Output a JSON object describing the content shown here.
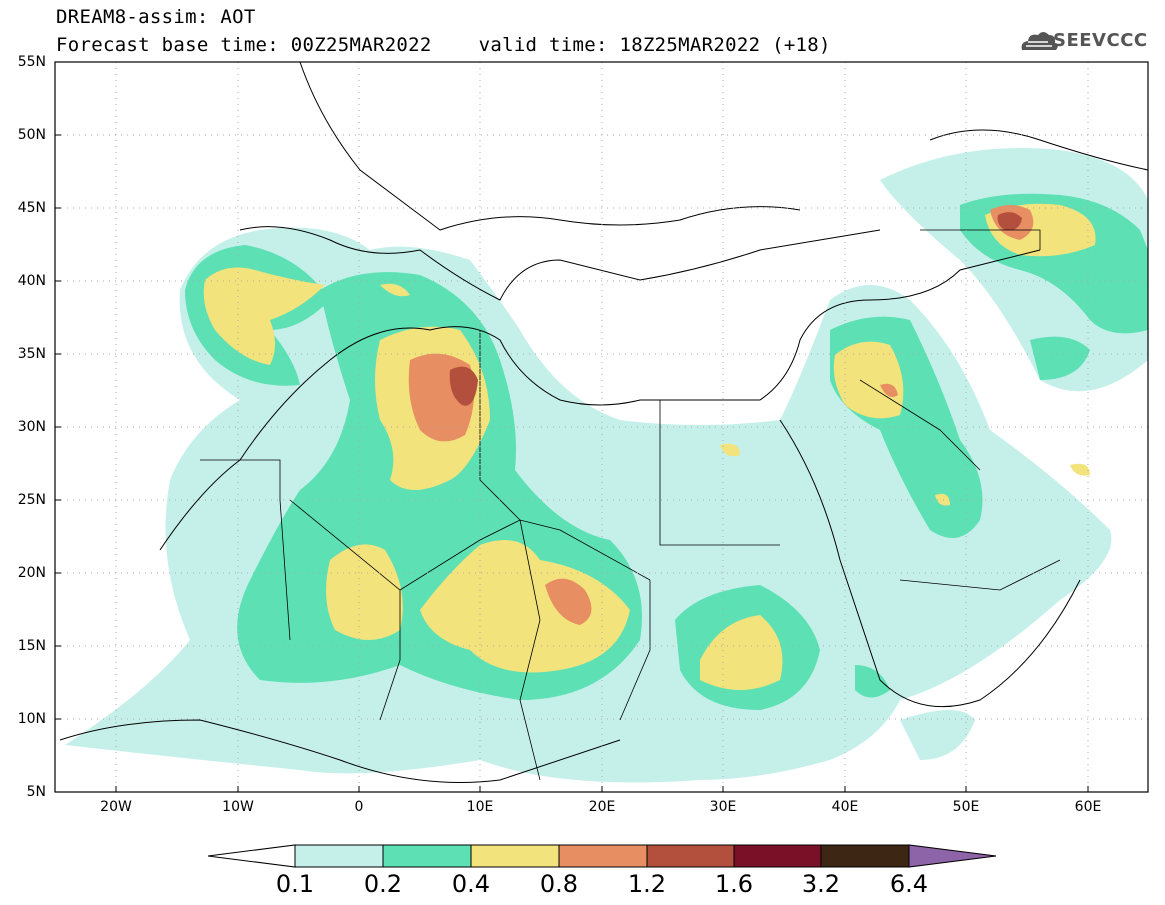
{
  "header": {
    "title_line1": "DREAM8-assim: AOT",
    "title_line2": "Forecast base time: 00Z25MAR2022    valid time: 18Z25MAR2022 (+18)",
    "logo_text": "SEEVCCC"
  },
  "map": {
    "lon_range": [
      -25,
      65
    ],
    "lat_range": [
      5,
      55
    ],
    "lat_labels": [
      "55N",
      "50N",
      "45N",
      "40N",
      "35N",
      "30N",
      "25N",
      "20N",
      "15N",
      "10N",
      "5N"
    ],
    "lon_labels": [
      "20W",
      "10W",
      "0",
      "10E",
      "20E",
      "30E",
      "40E",
      "50E",
      "60E"
    ],
    "grid": "dotted"
  },
  "colorbar": {
    "colors": [
      "#ffffff",
      "#c5f0ea",
      "#5ce0b4",
      "#f2e37c",
      "#e78e63",
      "#b3503d",
      "#7a0f28",
      "#3d2714",
      "#8e64a8"
    ],
    "labels": [
      "0.1",
      "0.2",
      "0.4",
      "0.8",
      "1.2",
      "1.6",
      "3.2",
      "6.4"
    ]
  },
  "chart_data": {
    "type": "heatmap",
    "variable": "AOT",
    "levels": [
      0.1,
      0.2,
      0.4,
      0.8,
      1.2,
      1.6,
      3.2,
      6.4
    ],
    "xlabel": "",
    "ylabel": "",
    "xlim": [
      -25,
      65
    ],
    "ylim": [
      5,
      55
    ]
  }
}
